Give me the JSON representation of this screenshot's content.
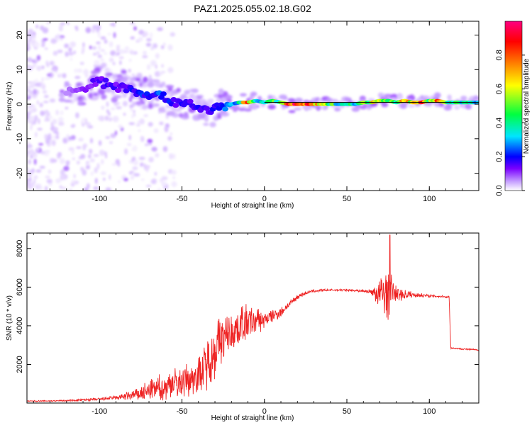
{
  "figure_title": "PAZ1.2025.055.02.18.G02",
  "chart_data": [
    {
      "type": "heatmap",
      "title": "PAZ1.2025.055.02.18.G02",
      "xlabel": "Height of straight line (km)",
      "ylabel": "Frequency (Hz)",
      "xlim": [
        -144,
        130
      ],
      "ylim": [
        -25,
        24
      ],
      "xticks": [
        -100,
        -50,
        0,
        50,
        100
      ],
      "xtick_labels": [
        "-100",
        "-50",
        "0",
        "50",
        "100"
      ],
      "yticks": [
        -20,
        -10,
        0,
        10,
        20
      ],
      "ytick_labels": [
        "-20",
        "-10",
        "0",
        "10",
        "20"
      ],
      "grid": false,
      "colorbar": {
        "label": "Normalized spectral amplitude",
        "range": [
          0,
          1
        ],
        "ticks": [
          0.0,
          0.2,
          0.4,
          0.6,
          0.8
        ],
        "tick_labels": [
          "0.0",
          "0.2",
          "0.4",
          "0.6",
          "0.8"
        ],
        "colors": [
          "#ffffff",
          "#c9a6ff",
          "#7a00ff",
          "#0000ff",
          "#00e5ff",
          "#00ff40",
          "#ffff00",
          "#ff8000",
          "#ff0000",
          "#ff0080"
        ]
      },
      "ridge": [
        {
          "x": -120,
          "y": 3,
          "v": 0.12
        },
        {
          "x": -112,
          "y": 4,
          "v": 0.18
        },
        {
          "x": -105,
          "y": 6,
          "v": 0.22
        },
        {
          "x": -100,
          "y": 6.5,
          "v": 0.25
        },
        {
          "x": -95,
          "y": 6,
          "v": 0.28
        },
        {
          "x": -90,
          "y": 5,
          "v": 0.25
        },
        {
          "x": -85,
          "y": 5,
          "v": 0.3
        },
        {
          "x": -80,
          "y": 4,
          "v": 0.3
        },
        {
          "x": -75,
          "y": 3.5,
          "v": 0.32
        },
        {
          "x": -70,
          "y": 3,
          "v": 0.3
        },
        {
          "x": -65,
          "y": 2.5,
          "v": 0.33
        },
        {
          "x": -60,
          "y": 1.5,
          "v": 0.32
        },
        {
          "x": -55,
          "y": 1,
          "v": 0.3
        },
        {
          "x": -50,
          "y": 0.5,
          "v": 0.28
        },
        {
          "x": -45,
          "y": 0,
          "v": 0.3
        },
        {
          "x": -40,
          "y": -1,
          "v": 0.28
        },
        {
          "x": -35,
          "y": -1.5,
          "v": 0.25
        },
        {
          "x": -30,
          "y": -1.5,
          "v": 0.28
        },
        {
          "x": -25,
          "y": -0.5,
          "v": 0.32
        },
        {
          "x": -20,
          "y": 0,
          "v": 0.4
        },
        {
          "x": -15,
          "y": 0.5,
          "v": 0.5
        },
        {
          "x": -10,
          "y": 0.5,
          "v": 0.75
        },
        {
          "x": -5,
          "y": 1,
          "v": 0.5
        },
        {
          "x": 0,
          "y": 0.5,
          "v": 0.45
        },
        {
          "x": 5,
          "y": 1,
          "v": 0.5
        },
        {
          "x": 10,
          "y": 0.5,
          "v": 0.55
        },
        {
          "x": 15,
          "y": 0,
          "v": 0.8
        },
        {
          "x": 20,
          "y": 0,
          "v": 0.85
        },
        {
          "x": 25,
          "y": 0,
          "v": 0.8
        },
        {
          "x": 30,
          "y": 0,
          "v": 0.75
        },
        {
          "x": 35,
          "y": 0,
          "v": 0.6
        },
        {
          "x": 40,
          "y": 0,
          "v": 0.55
        },
        {
          "x": 45,
          "y": 0,
          "v": 0.5
        },
        {
          "x": 50,
          "y": 0,
          "v": 0.5
        },
        {
          "x": 55,
          "y": 0,
          "v": 0.5
        },
        {
          "x": 60,
          "y": 0.5,
          "v": 0.55
        },
        {
          "x": 65,
          "y": 0.5,
          "v": 0.6
        },
        {
          "x": 70,
          "y": 1,
          "v": 0.75
        },
        {
          "x": 75,
          "y": 1,
          "v": 0.6
        },
        {
          "x": 80,
          "y": 0.5,
          "v": 0.55
        },
        {
          "x": 85,
          "y": 1,
          "v": 0.8
        },
        {
          "x": 90,
          "y": 0.5,
          "v": 0.6
        },
        {
          "x": 95,
          "y": 0.5,
          "v": 0.85
        },
        {
          "x": 100,
          "y": 1,
          "v": 0.6
        },
        {
          "x": 105,
          "y": 1,
          "v": 0.8
        },
        {
          "x": 110,
          "y": 0.5,
          "v": 0.55
        },
        {
          "x": 115,
          "y": 0.5,
          "v": 0.5
        },
        {
          "x": 120,
          "y": 0.5,
          "v": 0.5
        },
        {
          "x": 125,
          "y": 0.5,
          "v": 0.45
        },
        {
          "x": 130,
          "y": 0.5,
          "v": 0.45
        }
      ]
    },
    {
      "type": "line",
      "xlabel": "Height of straight line (km)",
      "ylabel": "SNR (10 * v/v)",
      "xlim": [
        -144,
        130
      ],
      "ylim": [
        0,
        8800
      ],
      "xticks": [
        -100,
        -50,
        0,
        50,
        100
      ],
      "xtick_labels": [
        "-100",
        "-50",
        "0",
        "50",
        "100"
      ],
      "yticks": [
        2000,
        4000,
        6000,
        8000
      ],
      "ytick_labels": [
        "2000",
        "4000",
        "6000",
        "8000"
      ],
      "grid": false,
      "color": "#ee2222",
      "envelope": {
        "x": [
          -144,
          -120,
          -100,
          -90,
          -80,
          -70,
          -60,
          -50,
          -40,
          -35,
          -30,
          -25,
          -20,
          -15,
          -10,
          -5,
          0,
          5,
          10,
          15,
          20,
          25,
          30,
          40,
          50,
          60,
          65,
          70,
          75,
          80,
          90,
          100,
          110,
          112,
          113,
          120,
          130
        ],
        "y": [
          100,
          120,
          200,
          280,
          400,
          600,
          900,
          1100,
          1500,
          2000,
          2800,
          3300,
          3700,
          4000,
          4200,
          4200,
          4300,
          4500,
          4700,
          5100,
          5500,
          5700,
          5800,
          5850,
          5850,
          5800,
          5750,
          5700,
          5700,
          5650,
          5600,
          5550,
          5500,
          5500,
          2850,
          2800,
          2750
        ],
        "amp": [
          30,
          40,
          80,
          120,
          300,
          600,
          800,
          900,
          1000,
          1400,
          1600,
          1300,
          1000,
          1200,
          1000,
          800,
          500,
          400,
          300,
          200,
          150,
          100,
          80,
          60,
          60,
          80,
          150,
          1000,
          1500,
          500,
          150,
          80,
          60,
          60,
          40,
          40,
          40
        ]
      },
      "peak": {
        "x": 76,
        "y": 8700
      }
    }
  ]
}
